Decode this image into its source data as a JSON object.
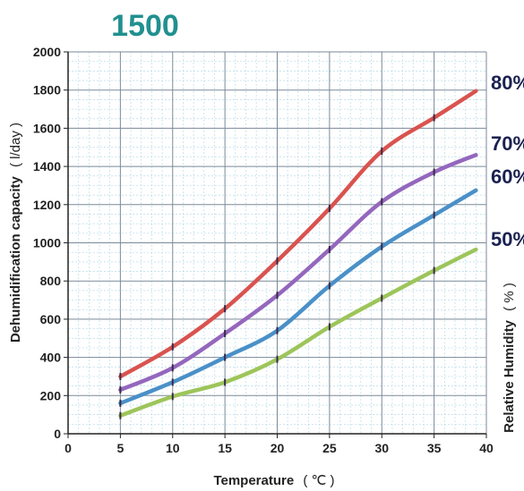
{
  "chart_data": {
    "type": "line",
    "title": "1500",
    "xlabel": "Temperature",
    "xlabel_unit": "( ℃ )",
    "ylabel": "Dehumidification capacity",
    "ylabel_unit": "( l/day )",
    "right_label": "Relative Humidity",
    "right_label_unit": "( % )",
    "xlim": [
      0,
      40
    ],
    "ylim": [
      0,
      2000
    ],
    "x_ticks": [
      "0",
      "5",
      "10",
      "15",
      "20",
      "25",
      "30",
      "35",
      "40"
    ],
    "y_ticks": [
      "0",
      "200",
      "400",
      "600",
      "800",
      "1000",
      "1200",
      "1400",
      "1600",
      "1800",
      "2000"
    ],
    "grid": true,
    "x": [
      5,
      10,
      15,
      20,
      25,
      30,
      35,
      39
    ],
    "series": [
      {
        "name": "80%",
        "color": "#d9534f",
        "values": [
          300,
          455,
          655,
          905,
          1180,
          1480,
          1655,
          1795
        ]
      },
      {
        "name": "70%",
        "color": "#9467bd",
        "values": [
          230,
          345,
          525,
          725,
          965,
          1215,
          1370,
          1460
        ]
      },
      {
        "name": "60%",
        "color": "#4a90c8",
        "values": [
          160,
          270,
          400,
          540,
          775,
          980,
          1145,
          1275
        ]
      },
      {
        "name": "50%",
        "color": "#9dc55a",
        "values": [
          95,
          195,
          270,
          390,
          560,
          710,
          855,
          965
        ]
      }
    ]
  }
}
